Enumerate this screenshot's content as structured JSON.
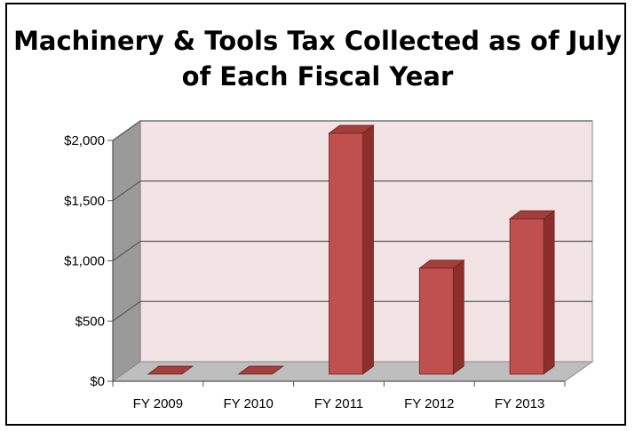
{
  "chart_data": {
    "type": "bar",
    "title": "Machinery & Tools Tax Collected as of July of Each Fiscal Year",
    "categories": [
      "FY 2009",
      "FY 2010",
      "FY 2011",
      "FY 2012",
      "FY 2013"
    ],
    "values": [
      0,
      0,
      2000,
      880,
      1290
    ],
    "ylim": [
      0,
      2000
    ],
    "yticks": [
      {
        "value": 0,
        "label": "$0"
      },
      {
        "value": 500,
        "label": "$500"
      },
      {
        "value": 1000,
        "label": "$1,000"
      },
      {
        "value": 1500,
        "label": "$1,500"
      },
      {
        "value": 2000,
        "label": "$2,000"
      }
    ],
    "grid": true,
    "legend": "none",
    "colors": {
      "bar_front": "#C0504D",
      "bar_side": "#8C2F2C",
      "bar_top": "#A33E3B",
      "wall": "#F2E4E4",
      "side_wall": "#9A9A9A",
      "floor": "#BEBEBE"
    }
  }
}
